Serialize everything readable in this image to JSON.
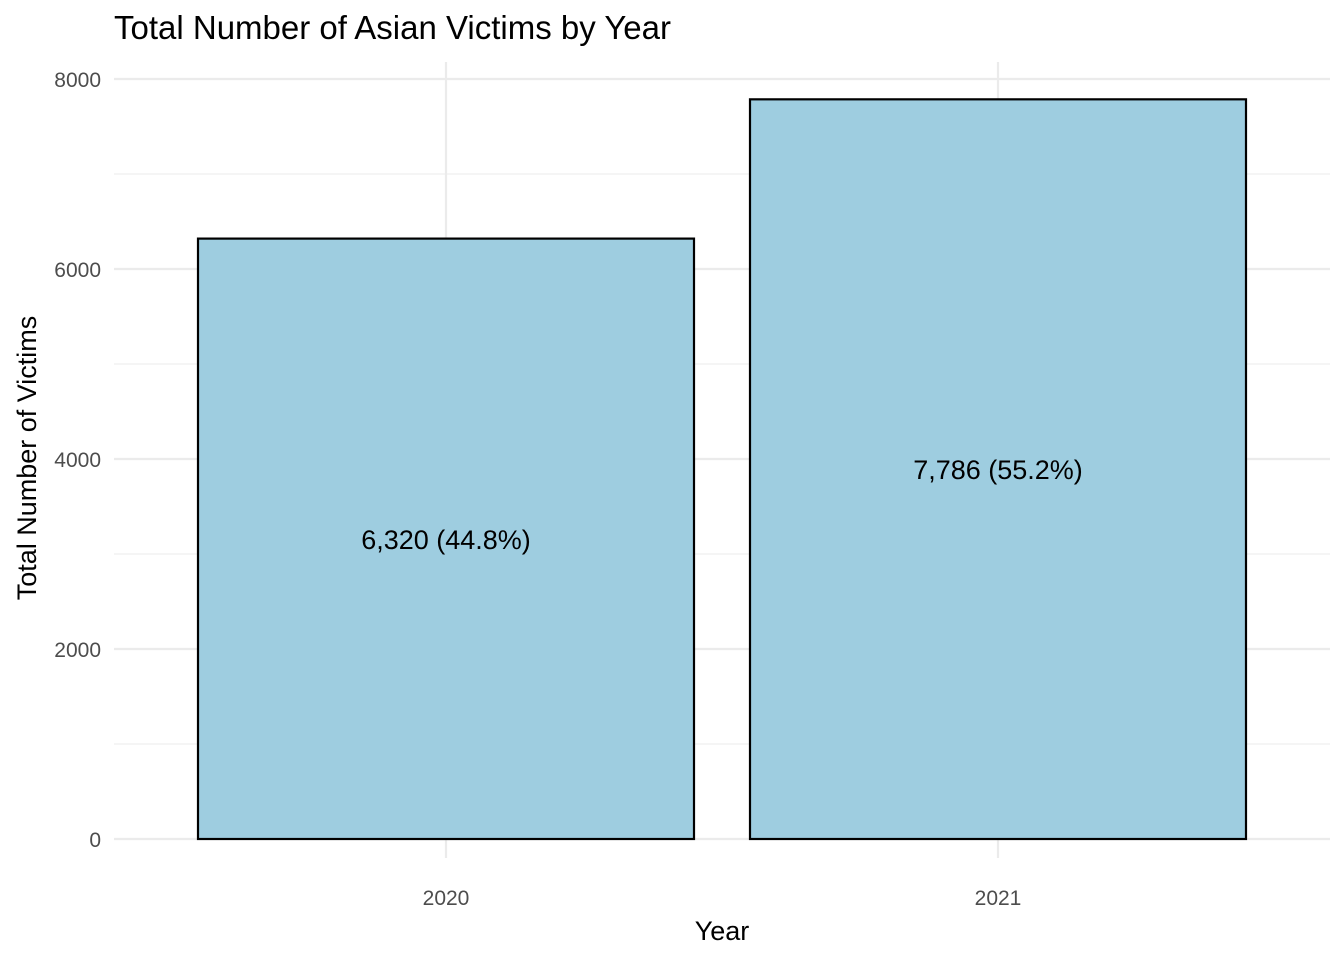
{
  "chart_data": {
    "type": "bar",
    "title": "Total Number of Asian Victims by Year",
    "xlabel": "Year",
    "ylabel": "Total Number of Victims",
    "categories": [
      "2020",
      "2021"
    ],
    "values": [
      6320,
      7786
    ],
    "data_labels": [
      "6,320 (44.8%)",
      "7,786 (55.2%)"
    ],
    "percentages": [
      44.8,
      55.2
    ],
    "ylim": [
      0,
      8000
    ],
    "yticks": [
      0,
      2000,
      4000,
      6000,
      8000
    ],
    "ytick_labels": [
      "0",
      "2000",
      "4000",
      "6000",
      "8000"
    ],
    "grid": true,
    "legend": "none",
    "colors": {
      "bar_fill": "#9ecde0",
      "bar_outline": "#000000"
    }
  }
}
